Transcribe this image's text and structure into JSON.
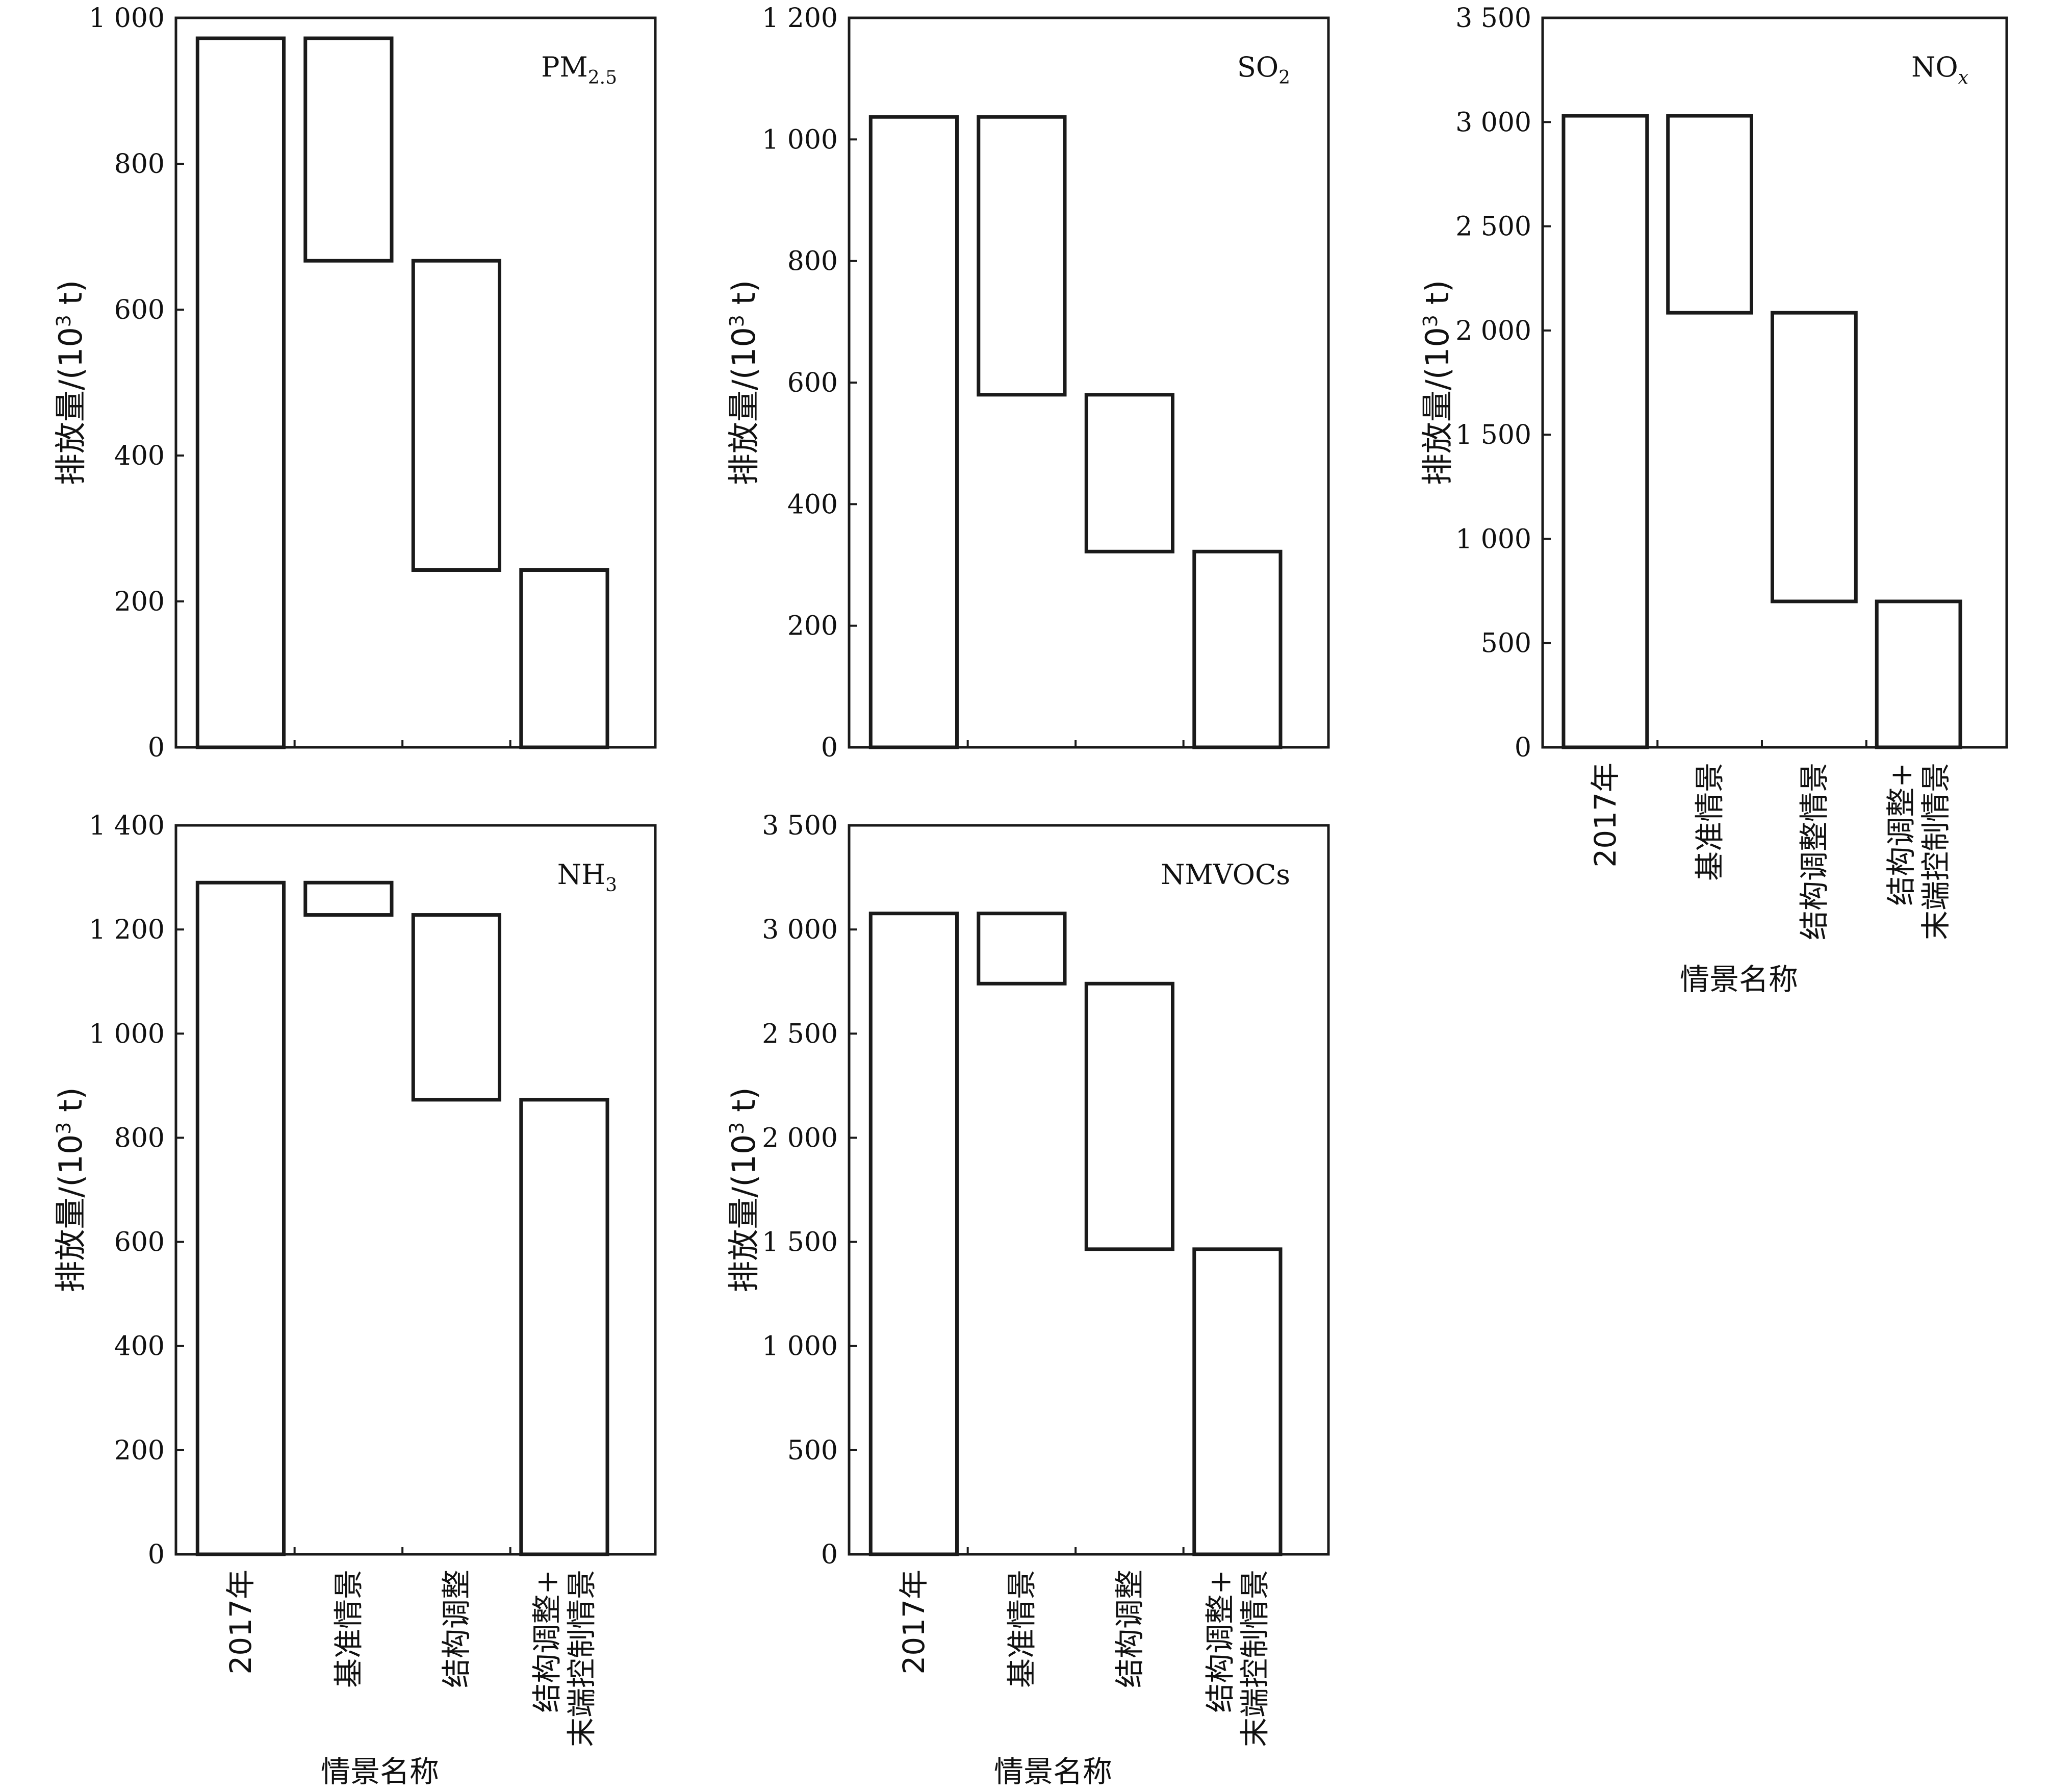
{
  "chart_data": [
    {
      "type": "bar",
      "chart_style": "waterfall",
      "title": "PM",
      "title_sub": "2.5",
      "title_sub_style": "subscript",
      "ylabel": "排放量/(10",
      "ylabel_sup": "3",
      "ylabel_suffix": " t)",
      "ylim": [
        0,
        1000
      ],
      "yticks": [
        0,
        200,
        400,
        600,
        800,
        1000
      ],
      "ytick_labels": [
        "0",
        "200",
        "400",
        "600",
        "800",
        "1 000"
      ],
      "categories": [],
      "xlabel": "",
      "bars": [
        {
          "low": 0,
          "high": 972
        },
        {
          "low": 667,
          "high": 972
        },
        {
          "low": 243,
          "high": 667
        },
        {
          "low": 0,
          "high": 243
        }
      ]
    },
    {
      "type": "bar",
      "chart_style": "waterfall",
      "title": "SO",
      "title_sub": "2",
      "title_sub_style": "subscript",
      "ylabel": "排放量/(10",
      "ylabel_sup": "3",
      "ylabel_suffix": " t)",
      "ylim": [
        0,
        1200
      ],
      "yticks": [
        0,
        200,
        400,
        600,
        800,
        1000,
        1200
      ],
      "ytick_labels": [
        "0",
        "200",
        "400",
        "600",
        "800",
        "1 000",
        "1 200"
      ],
      "categories": [],
      "xlabel": "",
      "bars": [
        {
          "low": 0,
          "high": 1037
        },
        {
          "low": 580,
          "high": 1037
        },
        {
          "low": 322,
          "high": 580
        },
        {
          "low": 0,
          "high": 322
        }
      ]
    },
    {
      "type": "bar",
      "chart_style": "waterfall",
      "title": "NO",
      "title_sub": "x",
      "title_sub_style": "subscript-italic",
      "ylabel": "排放量/(10",
      "ylabel_sup": "3",
      "ylabel_suffix": " t)",
      "ylim": [
        0,
        3500
      ],
      "yticks": [
        0,
        500,
        1000,
        1500,
        2000,
        2500,
        3000,
        3500
      ],
      "ytick_labels": [
        "0",
        "500",
        "1 000",
        "1 500",
        "2 000",
        "2 500",
        "3 000",
        "3 500"
      ],
      "categories": [
        "2017年",
        "基准情景",
        "结构调整情景",
        "结构调整+\n末端控制情景"
      ],
      "xlabel": "情景名称",
      "bars": [
        {
          "low": 0,
          "high": 3030
        },
        {
          "low": 2085,
          "high": 3030
        },
        {
          "low": 700,
          "high": 2085
        },
        {
          "low": 0,
          "high": 700
        }
      ]
    },
    {
      "type": "bar",
      "chart_style": "waterfall",
      "title": "NH",
      "title_sub": "3",
      "title_sub_style": "subscript",
      "ylabel": "排放量/(10",
      "ylabel_sup": "3",
      "ylabel_suffix": " t)",
      "ylim": [
        0,
        1400
      ],
      "yticks": [
        0,
        200,
        400,
        600,
        800,
        1000,
        1200,
        1400
      ],
      "ytick_labels": [
        "0",
        "200",
        "400",
        "600",
        "800",
        "1 000",
        "1 200",
        "1 400"
      ],
      "categories": [
        "2017年",
        "基准情景",
        "结构调整",
        "结构调整+\n末端控制情景"
      ],
      "xlabel": "情景名称",
      "bars": [
        {
          "low": 0,
          "high": 1290
        },
        {
          "low": 1228,
          "high": 1290
        },
        {
          "low": 873,
          "high": 1228
        },
        {
          "low": 0,
          "high": 873
        }
      ]
    },
    {
      "type": "bar",
      "chart_style": "waterfall",
      "title": "NMVOCs",
      "title_sub": "",
      "title_sub_style": "subscript",
      "ylabel": "排放量/(10",
      "ylabel_sup": "3",
      "ylabel_suffix": " t)",
      "ylim": [
        0,
        3500
      ],
      "yticks": [
        0,
        500,
        1000,
        1500,
        2000,
        2500,
        3000,
        3500
      ],
      "ytick_labels": [
        "0",
        "500",
        "1 000",
        "1 500",
        "2 000",
        "2 500",
        "3 000",
        "3 500"
      ],
      "categories": [
        "2017年",
        "基准情景",
        "结构调整",
        "结构调整+\n末端控制情景"
      ],
      "xlabel": "情景名称",
      "bars": [
        {
          "low": 0,
          "high": 3077
        },
        {
          "low": 2740,
          "high": 3077
        },
        {
          "low": 1465,
          "high": 2740
        },
        {
          "low": 0,
          "high": 1465
        }
      ]
    }
  ]
}
